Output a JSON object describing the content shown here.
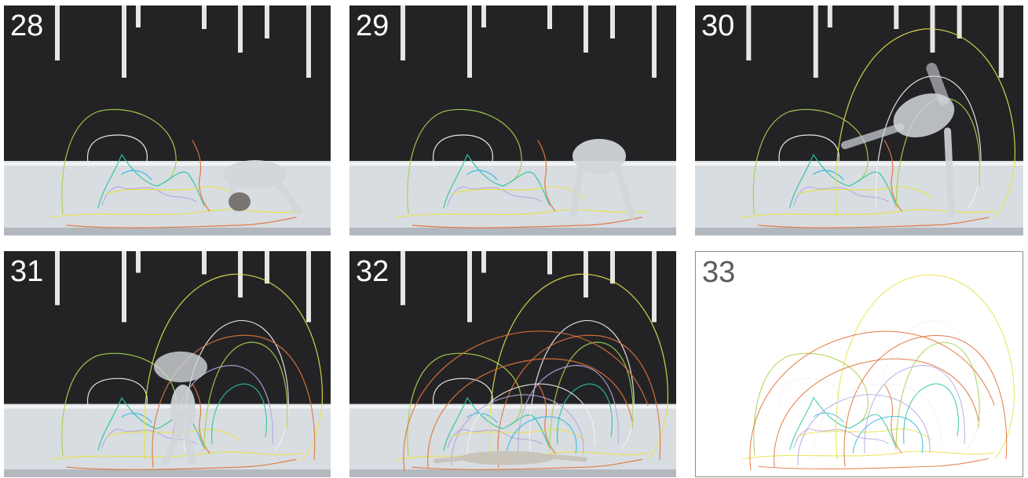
{
  "frames": [
    {
      "number": "28",
      "pose": "bent"
    },
    {
      "number": "29",
      "pose": "crouch"
    },
    {
      "number": "30",
      "pose": "rising"
    },
    {
      "number": "31",
      "pose": "handstand"
    },
    {
      "number": "32",
      "pose": "lying"
    },
    {
      "number": "33",
      "pose": "none"
    }
  ],
  "colors": {
    "stage_backdrop": "#232326",
    "stage_floor": "#d8dde2",
    "light_bar": "#e6e6e6",
    "dancer": "#d2d6da",
    "trail_yellow": "#e8e24a",
    "trail_lime": "#a6d24a",
    "trail_white": "#f2f2f2",
    "trail_orange": "#e0743a",
    "trail_teal": "#2ec4a0",
    "trail_lavender": "#b8a8e0",
    "trail_cyan": "#38b8e8"
  }
}
